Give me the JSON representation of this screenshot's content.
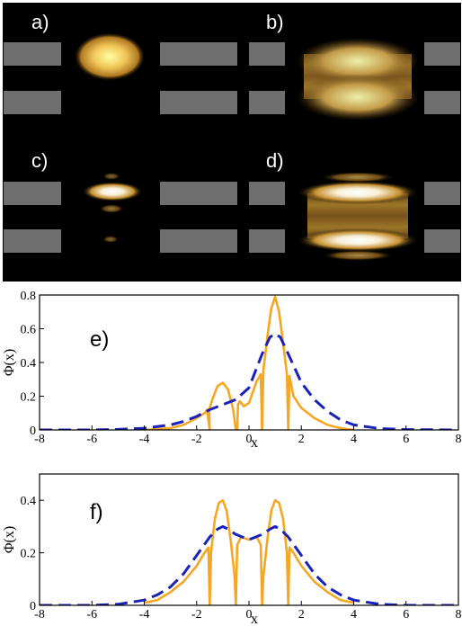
{
  "density_panels": {
    "labels": [
      "a)",
      "b)",
      "c)",
      "d)"
    ],
    "background_color": "#000000",
    "barrier_color": "#6e6e6e",
    "glow_color": "#d9a23a"
  },
  "chart_data": [
    {
      "type": "line",
      "label": "e)",
      "xlabel": "x",
      "ylabel": "Φ(x)",
      "xlim": [
        -8,
        8
      ],
      "ylim": [
        0,
        0.8
      ],
      "xticks": [
        "-8",
        "-6",
        "-4",
        "-2",
        "0",
        "2",
        "4",
        "6",
        "8"
      ],
      "yticks": [
        "0",
        "0.2",
        "0.4",
        "0.6",
        "0.8"
      ],
      "series": [
        {
          "style": "solid",
          "color": "#f5a623",
          "x": [
            -4.0,
            -3.0,
            -2.5,
            -2.0,
            -1.7,
            -1.6,
            -1.5,
            -1.52,
            -1.4,
            -1.2,
            -1.0,
            -0.8,
            -0.6,
            -0.5,
            -0.45,
            -0.42,
            -0.35,
            -0.2,
            0.0,
            0.3,
            0.45,
            0.5,
            0.55,
            0.7,
            0.85,
            1.0,
            1.15,
            1.3,
            1.45,
            1.5,
            1.55,
            1.7,
            2.0,
            2.5,
            3.0,
            3.5,
            4.0
          ],
          "y": [
            0.0,
            0.01,
            0.03,
            0.07,
            0.1,
            0.12,
            0.0,
            0.12,
            0.18,
            0.26,
            0.28,
            0.24,
            0.12,
            0.0,
            0.0,
            0.15,
            0.17,
            0.14,
            0.16,
            0.29,
            0.33,
            0.0,
            0.35,
            0.55,
            0.72,
            0.79,
            0.7,
            0.52,
            0.33,
            0.0,
            0.32,
            0.2,
            0.13,
            0.07,
            0.03,
            0.01,
            0.0
          ]
        },
        {
          "style": "dashed",
          "color": "#1a22bb",
          "x": [
            -8.0,
            -6.0,
            -5.0,
            -4.0,
            -3.0,
            -2.5,
            -2.0,
            -1.5,
            -1.0,
            -0.5,
            0.0,
            0.5,
            0.8,
            1.0,
            1.2,
            1.5,
            2.0,
            2.5,
            3.0,
            3.5,
            4.0,
            5.0,
            6.0,
            8.0
          ],
          "y": [
            0.0,
            0.0,
            0.003,
            0.01,
            0.03,
            0.05,
            0.08,
            0.12,
            0.15,
            0.18,
            0.25,
            0.45,
            0.55,
            0.57,
            0.55,
            0.45,
            0.28,
            0.18,
            0.11,
            0.06,
            0.03,
            0.008,
            0.002,
            0.0
          ]
        }
      ]
    },
    {
      "type": "line",
      "label": "f)",
      "xlabel": "x",
      "ylabel": "Φ(x)",
      "xlim": [
        -8,
        8
      ],
      "ylim": [
        0,
        0.5
      ],
      "xticks": [
        "-8",
        "-6",
        "-4",
        "-2",
        "0",
        "2",
        "4",
        "6",
        "8"
      ],
      "yticks": [
        "0",
        "0.2",
        "0.4"
      ],
      "series": [
        {
          "style": "solid",
          "color": "#f5a623",
          "x": [
            -4.0,
            -3.5,
            -3.0,
            -2.5,
            -2.0,
            -1.7,
            -1.55,
            -1.5,
            -1.45,
            -1.3,
            -1.15,
            -1.0,
            -0.85,
            -0.7,
            -0.55,
            -0.5,
            -0.45,
            -0.3,
            0.0,
            0.3,
            0.45,
            0.5,
            0.55,
            0.7,
            0.85,
            1.0,
            1.15,
            1.3,
            1.45,
            1.5,
            1.55,
            1.7,
            2.0,
            2.5,
            3.0,
            3.5,
            4.0
          ],
          "y": [
            0.01,
            0.02,
            0.05,
            0.09,
            0.15,
            0.2,
            0.22,
            0.0,
            0.2,
            0.33,
            0.39,
            0.4,
            0.36,
            0.25,
            0.11,
            0.0,
            0.23,
            0.26,
            0.25,
            0.26,
            0.23,
            0.0,
            0.11,
            0.25,
            0.36,
            0.4,
            0.39,
            0.33,
            0.2,
            0.0,
            0.22,
            0.2,
            0.15,
            0.09,
            0.05,
            0.02,
            0.01
          ]
        },
        {
          "style": "dashed",
          "color": "#1a22bb",
          "x": [
            -8.0,
            -6.0,
            -5.0,
            -4.0,
            -3.5,
            -3.0,
            -2.5,
            -2.0,
            -1.5,
            -1.2,
            -1.0,
            -0.8,
            -0.5,
            0.0,
            0.5,
            0.8,
            1.0,
            1.2,
            1.5,
            2.0,
            2.5,
            3.0,
            3.5,
            4.0,
            5.0,
            6.0,
            8.0
          ],
          "y": [
            0.0,
            0.0,
            0.004,
            0.02,
            0.04,
            0.07,
            0.12,
            0.19,
            0.26,
            0.29,
            0.3,
            0.29,
            0.27,
            0.25,
            0.27,
            0.29,
            0.3,
            0.29,
            0.26,
            0.19,
            0.12,
            0.07,
            0.04,
            0.02,
            0.004,
            0.0,
            0.0
          ]
        }
      ]
    }
  ]
}
